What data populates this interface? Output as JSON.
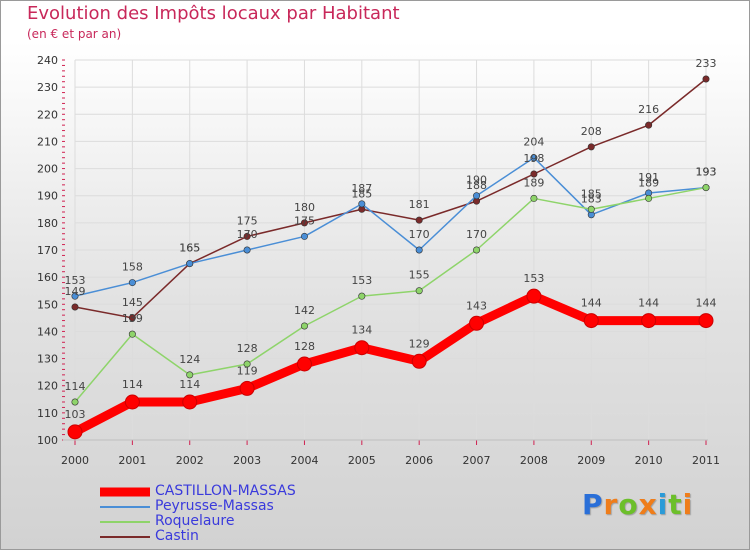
{
  "title": "Evolution des Impôts locaux par Habitant",
  "subtitle": "(en € et par an)",
  "brand": {
    "name": "Proxiti",
    "letters": [
      "P",
      "r",
      "o",
      "x",
      "i",
      "t",
      "i"
    ],
    "letter_colors": [
      "#2a6fd8",
      "#ef7d1a",
      "#6cbf2a",
      "#ef7d1a",
      "#2a9bd8",
      "#6cbf2a",
      "#ef7d1a"
    ]
  },
  "chart_data": {
    "type": "line",
    "title": "Evolution des Impôts locaux par Habitant",
    "subtitle": "(en € et par an)",
    "xlabel": "",
    "ylabel": "",
    "ylim": [
      100,
      240
    ],
    "yticks": [
      100,
      110,
      120,
      130,
      140,
      150,
      160,
      170,
      180,
      190,
      200,
      210,
      220,
      230,
      240
    ],
    "categories": [
      "2000",
      "2001",
      "2002",
      "2003",
      "2004",
      "2005",
      "2006",
      "2007",
      "2008",
      "2009",
      "2010",
      "2011"
    ],
    "grid": true,
    "legend_position": "bottom-left",
    "series": [
      {
        "name": "Castin",
        "color": "#7a2a2a",
        "values": [
          149,
          145,
          165,
          175,
          180,
          185,
          181,
          188,
          198,
          208,
          216,
          233
        ],
        "labels": [
          "149",
          "145",
          "165",
          "175",
          "180",
          "185",
          "181",
          "188",
          "198",
          "208",
          "216",
          "233"
        ]
      },
      {
        "name": "Peyrusse-Massas",
        "color": "#4a8ed6",
        "values": [
          153,
          158,
          165,
          170,
          175,
          187,
          170,
          190,
          204,
          183,
          191,
          193
        ],
        "labels": [
          "153",
          "158",
          "165",
          "170",
          "175",
          "187",
          "170",
          "190",
          "204",
          "183",
          "191",
          "193"
        ]
      },
      {
        "name": "Roquelaure",
        "color": "#8ed46a",
        "values": [
          114,
          139,
          124,
          128,
          142,
          153,
          155,
          170,
          189,
          185,
          189,
          193
        ],
        "labels": [
          "114",
          "139",
          "124",
          "128",
          "142",
          "153",
          "155",
          "170",
          "189",
          "185",
          "189",
          "193"
        ]
      },
      {
        "name": "CASTILLON-MASSAS",
        "color": "#ff0000",
        "values": [
          103,
          114,
          114,
          119,
          128,
          134,
          129,
          143,
          153,
          144,
          144,
          144
        ],
        "labels": [
          "103",
          "114",
          "114",
          "119",
          "128",
          "134",
          "129",
          "143",
          "153",
          "144",
          "144",
          "144"
        ]
      }
    ],
    "legend": [
      "CASTILLON-MASSAS",
      "Peyrusse-Massas",
      "Roquelaure",
      "Castin"
    ]
  }
}
